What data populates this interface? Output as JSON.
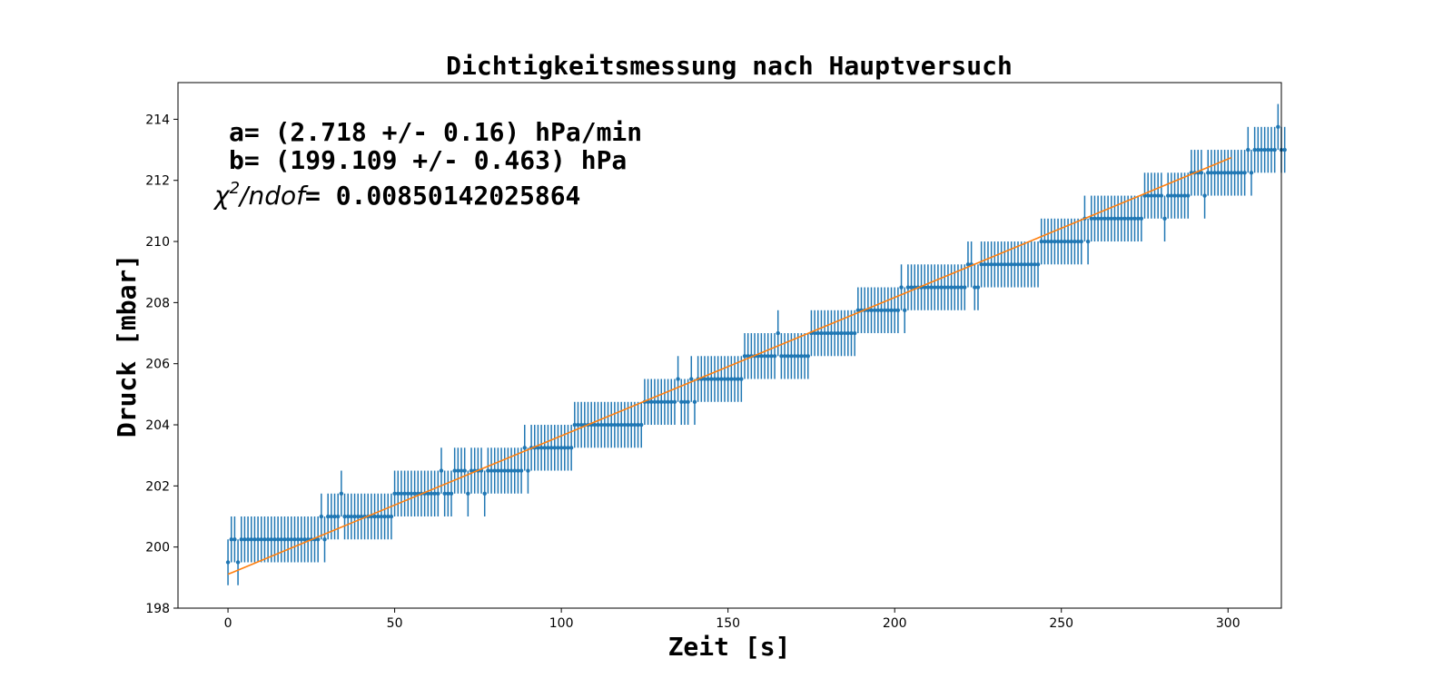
{
  "chart_data": {
    "type": "scatter",
    "title": "Dichtigkeitsmessung nach Hauptversuch",
    "xlabel": "Zeit [s]",
    "ylabel": "Druck [mbar]",
    "xlim": [
      -15,
      316
    ],
    "ylim": [
      198,
      215.2
    ],
    "xticks": [
      0,
      50,
      100,
      150,
      200,
      250,
      300
    ],
    "yticks": [
      198,
      200,
      202,
      204,
      206,
      208,
      210,
      212,
      214
    ],
    "grid": false,
    "colors": {
      "data": "#1f77b4",
      "fit": "#ff7f0e"
    },
    "annotations": {
      "line_a": "a= (2.718 +/- 0.16) hPa/min",
      "line_b": "b= (199.109 +/- 0.463) hPa",
      "chi_symbol": "χ",
      "chi_sup": "2",
      "chi_rest": "/ndof",
      "chi_value": "= 0.00850142025864"
    },
    "series": [
      {
        "kind": "errorbar",
        "x_start": 0,
        "x_step": 1,
        "y_error": 0.75,
        "y": [
          199.5,
          200.25,
          200.25,
          199.5,
          200.25,
          200.25,
          200.25,
          200.25,
          200.25,
          200.25,
          200.25,
          200.25,
          200.25,
          200.25,
          200.25,
          200.25,
          200.25,
          200.25,
          200.25,
          200.25,
          200.25,
          200.25,
          200.25,
          200.25,
          200.25,
          200.25,
          200.25,
          200.25,
          201.0,
          200.25,
          201.0,
          201.0,
          201.0,
          201.0,
          201.75,
          201.0,
          201.0,
          201.0,
          201.0,
          201.0,
          201.0,
          201.0,
          201.0,
          201.0,
          201.0,
          201.0,
          201.0,
          201.0,
          201.0,
          201.0,
          201.75,
          201.75,
          201.75,
          201.75,
          201.75,
          201.75,
          201.75,
          201.75,
          201.75,
          201.75,
          201.75,
          201.75,
          201.75,
          201.75,
          202.5,
          201.75,
          201.75,
          201.75,
          202.5,
          202.5,
          202.5,
          202.5,
          201.75,
          202.5,
          202.5,
          202.5,
          202.5,
          201.75,
          202.5,
          202.5,
          202.5,
          202.5,
          202.5,
          202.5,
          202.5,
          202.5,
          202.5,
          202.5,
          202.5,
          203.25,
          202.5,
          203.25,
          203.25,
          203.25,
          203.25,
          203.25,
          203.25,
          203.25,
          203.25,
          203.25,
          203.25,
          203.25,
          203.25,
          203.25,
          204.0,
          204.0,
          204.0,
          204.0,
          204.0,
          204.0,
          204.0,
          204.0,
          204.0,
          204.0,
          204.0,
          204.0,
          204.0,
          204.0,
          204.0,
          204.0,
          204.0,
          204.0,
          204.0,
          204.0,
          204.0,
          204.75,
          204.75,
          204.75,
          204.75,
          204.75,
          204.75,
          204.75,
          204.75,
          204.75,
          204.75,
          205.5,
          204.75,
          204.75,
          204.75,
          205.5,
          204.75,
          205.5,
          205.5,
          205.5,
          205.5,
          205.5,
          205.5,
          205.5,
          205.5,
          205.5,
          205.5,
          205.5,
          205.5,
          205.5,
          205.5,
          206.25,
          206.25,
          206.25,
          206.25,
          206.25,
          206.25,
          206.25,
          206.25,
          206.25,
          206.25,
          207.0,
          206.25,
          206.25,
          206.25,
          206.25,
          206.25,
          206.25,
          206.25,
          206.25,
          206.25,
          207.0,
          207.0,
          207.0,
          207.0,
          207.0,
          207.0,
          207.0,
          207.0,
          207.0,
          207.0,
          207.0,
          207.0,
          207.0,
          207.0,
          207.75,
          207.75,
          207.75,
          207.75,
          207.75,
          207.75,
          207.75,
          207.75,
          207.75,
          207.75,
          207.75,
          207.75,
          207.75,
          208.5,
          207.75,
          208.5,
          208.5,
          208.5,
          208.5,
          208.5,
          208.5,
          208.5,
          208.5,
          208.5,
          208.5,
          208.5,
          208.5,
          208.5,
          208.5,
          208.5,
          208.5,
          208.5,
          208.5,
          209.25,
          209.25,
          208.5,
          208.5,
          209.25,
          209.25,
          209.25,
          209.25,
          209.25,
          209.25,
          209.25,
          209.25,
          209.25,
          209.25,
          209.25,
          209.25,
          209.25,
          209.25,
          209.25,
          209.25,
          209.25,
          209.25,
          210.0,
          210.0,
          210.0,
          210.0,
          210.0,
          210.0,
          210.0,
          210.0,
          210.0,
          210.0,
          210.0,
          210.0,
          210.0,
          210.75,
          210.0,
          210.75,
          210.75,
          210.75,
          210.75,
          210.75,
          210.75,
          210.75,
          210.75,
          210.75,
          210.75,
          210.75,
          210.75,
          210.75,
          210.75,
          210.75,
          210.75,
          211.5,
          211.5,
          211.5,
          211.5,
          211.5,
          211.5,
          210.75,
          211.5,
          211.5,
          211.5,
          211.5,
          211.5,
          211.5,
          211.5,
          212.25,
          212.25,
          212.25,
          212.25,
          211.5,
          212.25,
          212.25,
          212.25,
          212.25,
          212.25,
          212.25,
          212.25,
          212.25,
          212.25,
          212.25,
          212.25,
          212.25,
          213.0,
          212.25,
          213.0,
          213.0,
          213.0,
          213.0,
          213.0,
          213.0,
          213.0,
          213.75,
          213.0,
          213.0
        ]
      },
      {
        "kind": "line",
        "slope_per_s": 0.0453,
        "intercept": 199.109,
        "x_range": [
          0,
          301
        ]
      }
    ]
  }
}
